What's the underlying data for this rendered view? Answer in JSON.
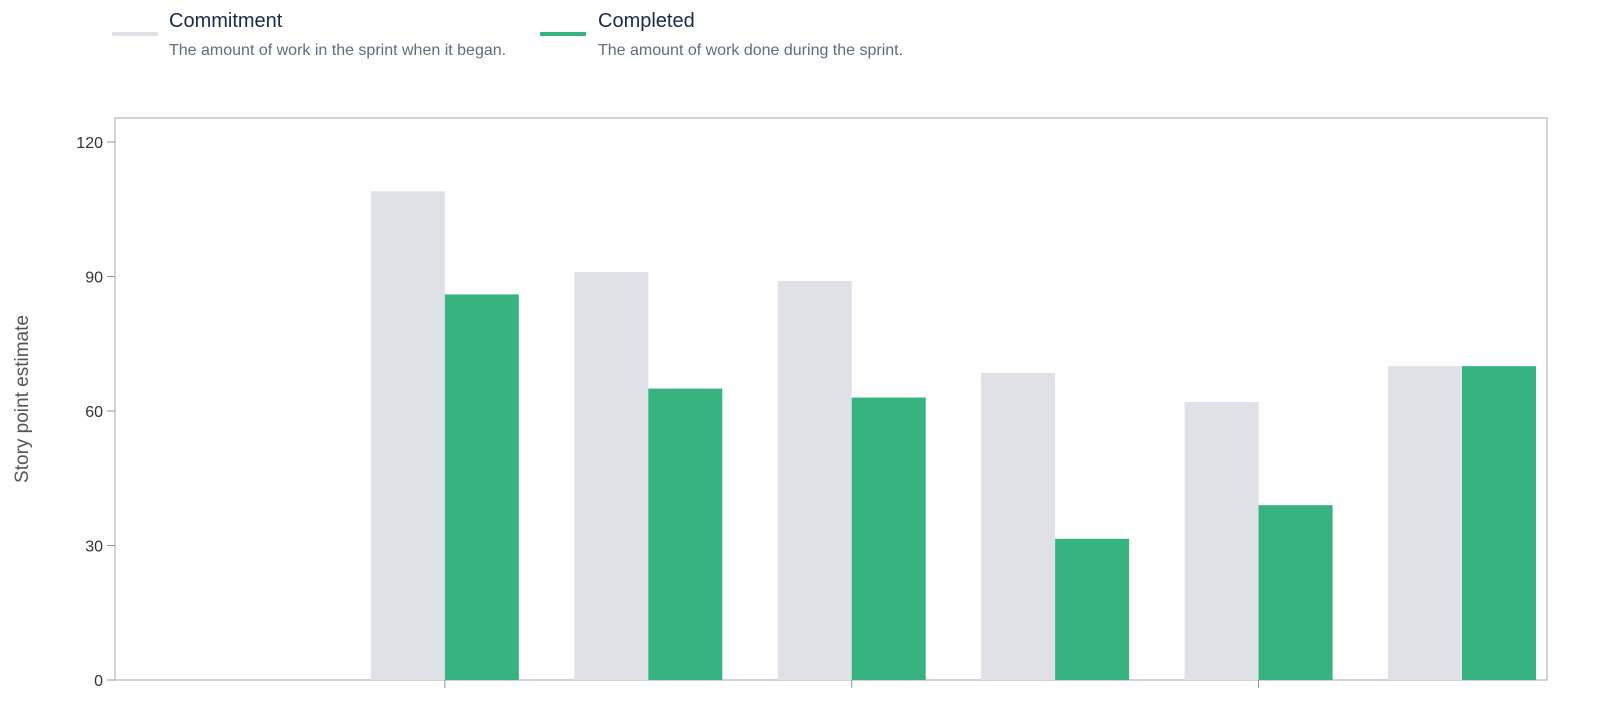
{
  "legend": {
    "items": [
      {
        "title": "Commitment",
        "description": "The amount of work in the sprint when it began.",
        "color": "#dfe1e6"
      },
      {
        "title": "Completed",
        "description": "The amount of work done during the sprint.",
        "color": "#36b37e"
      }
    ]
  },
  "chart_data": {
    "type": "bar",
    "ylabel": "Story point estimate",
    "ylim": [
      0,
      120
    ],
    "yticks": [
      0,
      30,
      60,
      90,
      120
    ],
    "grid": false,
    "legend_position": "top-left",
    "categories": [
      "",
      "",
      "",
      "",
      "",
      "",
      ""
    ],
    "series": [
      {
        "name": "Commitment",
        "color": "#dfe1e6",
        "values": [
          null,
          109,
          91,
          89,
          68.5,
          62,
          70
        ]
      },
      {
        "name": "Completed",
        "color": "#36b37e",
        "values": [
          null,
          86,
          65,
          63,
          31.5,
          39,
          70
        ]
      }
    ]
  }
}
